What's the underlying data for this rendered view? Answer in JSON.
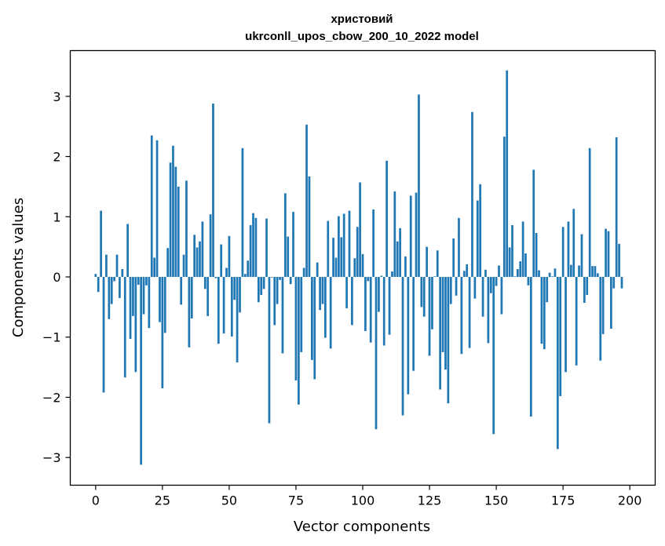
{
  "chart_data": {
    "type": "bar",
    "title": "христовий",
    "subtitle": "ukrconll_upos_cbow_200_10_2022 model",
    "xlabel": "Vector components",
    "ylabel": "Components values",
    "xlim": [
      -9.5,
      209.5
    ],
    "ylim": [
      -3.46,
      3.76
    ],
    "xticks": [
      0,
      25,
      50,
      75,
      100,
      125,
      150,
      175,
      200
    ],
    "yticks": [
      -3,
      -2,
      -1,
      0,
      1,
      2,
      3
    ],
    "ytick_labels": [
      "−3",
      "−2",
      "−1",
      "0",
      "1",
      "2",
      "3"
    ],
    "bar_color": "#1f77b4",
    "values": [
      0.05,
      -0.25,
      1.1,
      -1.92,
      0.37,
      -0.7,
      -0.45,
      -0.07,
      0.37,
      -0.35,
      0.13,
      -1.67,
      0.88,
      -1.03,
      -0.65,
      -1.58,
      -0.13,
      -3.12,
      -0.62,
      -0.14,
      -0.85,
      2.35,
      0.32,
      2.27,
      -0.75,
      -1.85,
      -0.93,
      0.48,
      1.9,
      2.18,
      1.83,
      1.5,
      -0.46,
      0.37,
      1.6,
      -1.17,
      -0.69,
      0.7,
      0.49,
      0.59,
      0.92,
      -0.2,
      -0.65,
      1.04,
      2.88,
      -0.02,
      -1.11,
      0.54,
      -0.94,
      0.15,
      0.68,
      -0.99,
      -0.38,
      -1.42,
      -0.59,
      2.14,
      0.05,
      0.27,
      0.86,
      1.06,
      0.98,
      -0.42,
      -0.3,
      -0.2,
      0.97,
      -2.43,
      -0.01,
      -0.8,
      -0.45,
      -0.05,
      -1.27,
      1.39,
      0.67,
      -0.12,
      1.08,
      -1.72,
      -2.12,
      -1.25,
      0.15,
      2.53,
      1.67,
      -1.38,
      -1.7,
      0.24,
      -0.55,
      -0.45,
      -1.01,
      0.93,
      -1.19,
      0.65,
      0.32,
      1.01,
      0.66,
      1.05,
      -0.52,
      1.1,
      -0.8,
      0.31,
      0.83,
      1.57,
      0.38,
      -0.9,
      -0.07,
      -1.09,
      1.12,
      -2.53,
      -0.58,
      0.02,
      -1.14,
      1.93,
      -0.96,
      0.09,
      1.42,
      0.59,
      0.81,
      -2.3,
      0.34,
      -1.95,
      1.35,
      -1.56,
      1.4,
      3.03,
      -0.5,
      -0.66,
      0.5,
      -1.31,
      -0.87,
      0.01,
      0.44,
      -1.87,
      -1.25,
      -1.54,
      -2.1,
      -0.45,
      0.64,
      -0.31,
      0.98,
      -1.28,
      0.1,
      0.21,
      -1.18,
      2.74,
      -0.36,
      1.27,
      1.54,
      -0.66,
      0.12,
      -1.1,
      -0.27,
      -2.61,
      -0.15,
      0.19,
      -0.62,
      2.33,
      3.43,
      0.49,
      0.86,
      0.01,
      0.13,
      0.26,
      0.92,
      0.39,
      -0.14,
      -2.32,
      1.78,
      0.73,
      0.11,
      -1.11,
      -1.2,
      -0.42,
      0.07,
      0.01,
      0.14,
      -2.86,
      -1.98,
      0.83,
      -1.58,
      0.92,
      0.2,
      1.13,
      -1.47,
      0.19,
      0.71,
      -0.43,
      -0.3,
      2.14,
      0.18,
      0.18,
      0.06,
      -1.39,
      -0.95,
      0.8,
      0.76,
      -0.86,
      -0.19,
      2.32,
      0.55,
      -0.19
    ]
  }
}
